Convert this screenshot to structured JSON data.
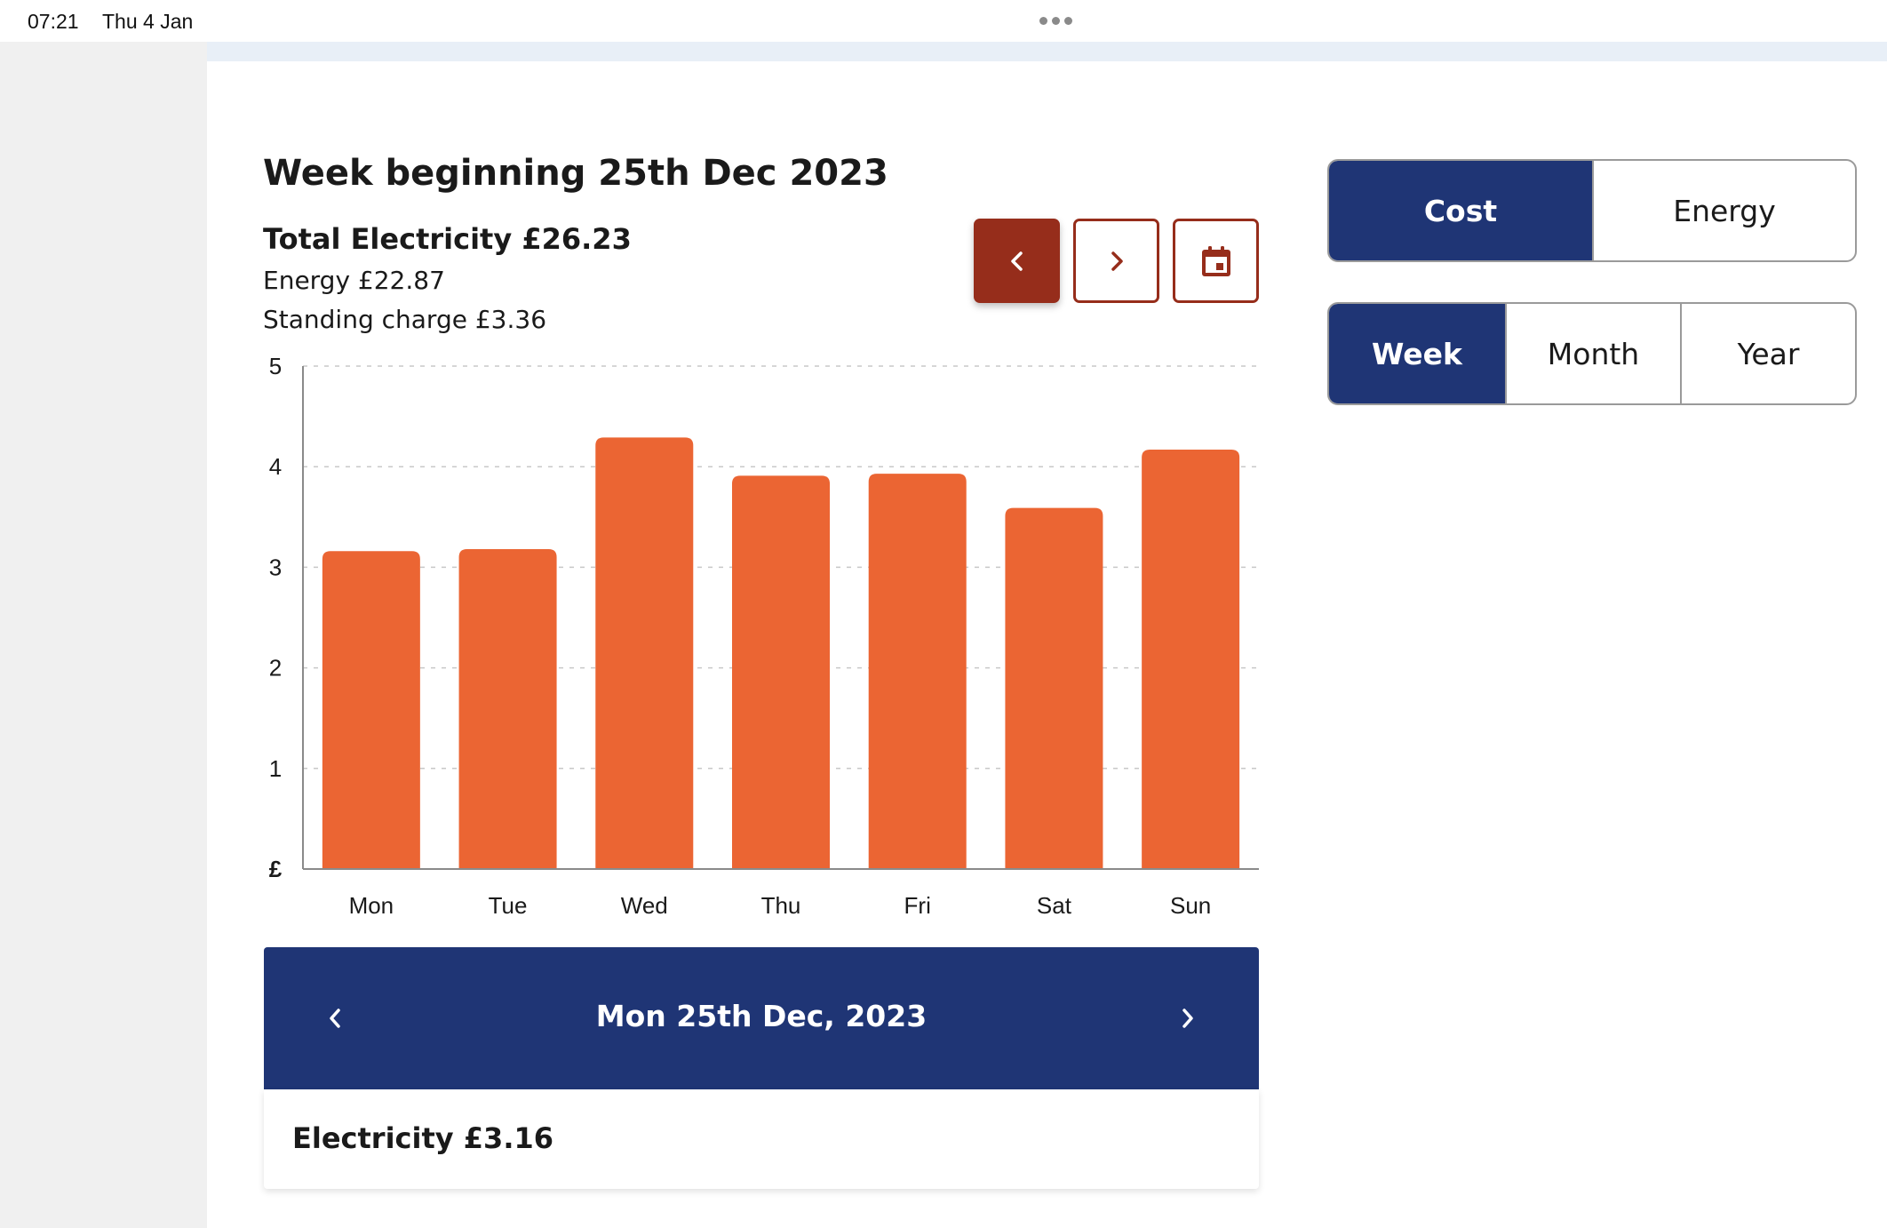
{
  "status_bar": {
    "time": "07:21",
    "date": "Thu 4 Jan"
  },
  "header": {
    "week_title": "Week beginning 25th Dec 2023",
    "total": "Total Electricity £26.23",
    "energy": "Energy £22.87",
    "standing_charge": "Standing charge £3.36"
  },
  "nav": {
    "prev_icon": "chevron-left-icon",
    "next_icon": "chevron-right-icon",
    "calendar_icon": "calendar-icon"
  },
  "colors": {
    "bar": "#eb6533",
    "primary": "#1f3575",
    "accent": "#962d1b"
  },
  "chart_data": {
    "type": "bar",
    "categories": [
      "Mon",
      "Tue",
      "Wed",
      "Thu",
      "Fri",
      "Sat",
      "Sun"
    ],
    "values": [
      3.16,
      3.18,
      4.29,
      3.91,
      3.93,
      3.59,
      4.17
    ],
    "yticks": [
      "£",
      "1",
      "2",
      "3",
      "4",
      "5"
    ],
    "ylim": [
      0,
      5
    ],
    "grid": true
  },
  "day_panel": {
    "date": "Mon 25th Dec, 2023",
    "value": "Electricity £3.16"
  },
  "toggles": {
    "mode": {
      "options": [
        "Cost",
        "Energy"
      ],
      "selected": "Cost"
    },
    "period": {
      "options": [
        "Week",
        "Month",
        "Year"
      ],
      "selected": "Week"
    }
  }
}
